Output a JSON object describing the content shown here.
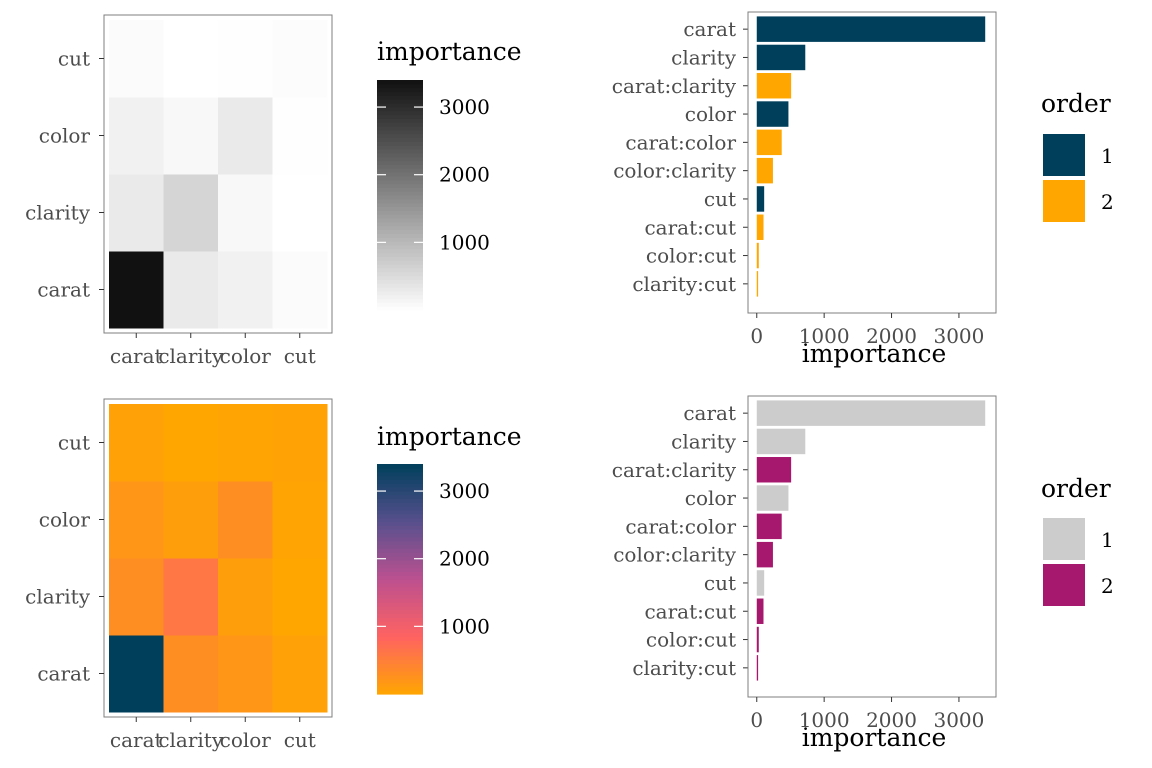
{
  "chart_data": [
    {
      "type": "heatmap",
      "x_categories": [
        "carat",
        "clarity",
        "color",
        "cut"
      ],
      "y_categories": [
        "carat",
        "clarity",
        "color",
        "cut"
      ],
      "values": [
        [
          3400,
          300,
          200,
          60
        ],
        [
          300,
          600,
          100,
          5
        ],
        [
          200,
          100,
          300,
          20
        ],
        [
          60,
          5,
          20,
          50
        ]
      ],
      "legend": {
        "title": "importance",
        "ticks": [
          1000,
          2000,
          3000
        ],
        "range": [
          0,
          3400
        ],
        "colors": [
          "#ffffff",
          "#111111"
        ]
      }
    },
    {
      "type": "bar",
      "orientation": "horizontal",
      "categories": [
        "carat",
        "clarity",
        "carat:clarity",
        "color",
        "carat:color",
        "color:clarity",
        "cut",
        "carat:cut",
        "color:cut",
        "clarity:cut"
      ],
      "values": [
        3390,
        720,
        510,
        470,
        370,
        240,
        110,
        100,
        30,
        20
      ],
      "order": [
        1,
        1,
        2,
        1,
        2,
        2,
        1,
        2,
        2,
        2
      ],
      "xlabel": "importance",
      "xticks": [
        0,
        1000,
        2000,
        3000
      ],
      "xlim": [
        -130,
        3550
      ],
      "legend": {
        "title": "order",
        "labels": [
          "1",
          "2"
        ],
        "colors": [
          "#003f5c",
          "#ffa600"
        ],
        "position": "right"
      }
    },
    {
      "type": "heatmap",
      "x_categories": [
        "carat",
        "clarity",
        "color",
        "cut"
      ],
      "y_categories": [
        "carat",
        "clarity",
        "color",
        "cut"
      ],
      "values": [
        [
          3400,
          300,
          200,
          60
        ],
        [
          300,
          600,
          100,
          5
        ],
        [
          200,
          100,
          300,
          20
        ],
        [
          60,
          5,
          20,
          50
        ]
      ],
      "legend": {
        "title": "importance",
        "ticks": [
          1000,
          2000,
          3000
        ],
        "range": [
          0,
          3400
        ],
        "colors": [
          "#ffa600",
          "#ff6361",
          "#bc5090",
          "#58508d",
          "#003f5c"
        ]
      }
    },
    {
      "type": "bar",
      "orientation": "horizontal",
      "categories": [
        "carat",
        "clarity",
        "carat:clarity",
        "color",
        "carat:color",
        "color:clarity",
        "cut",
        "carat:cut",
        "color:cut",
        "clarity:cut"
      ],
      "values": [
        3390,
        720,
        510,
        470,
        370,
        240,
        110,
        100,
        30,
        20
      ],
      "order": [
        1,
        1,
        2,
        1,
        2,
        2,
        1,
        2,
        2,
        2
      ],
      "xlabel": "importance",
      "xticks": [
        0,
        1000,
        2000,
        3000
      ],
      "xlim": [
        -130,
        3550
      ],
      "legend": {
        "title": "order",
        "labels": [
          "1",
          "2"
        ],
        "colors": [
          "#cccccc",
          "#a6186e"
        ],
        "position": "right"
      }
    }
  ]
}
